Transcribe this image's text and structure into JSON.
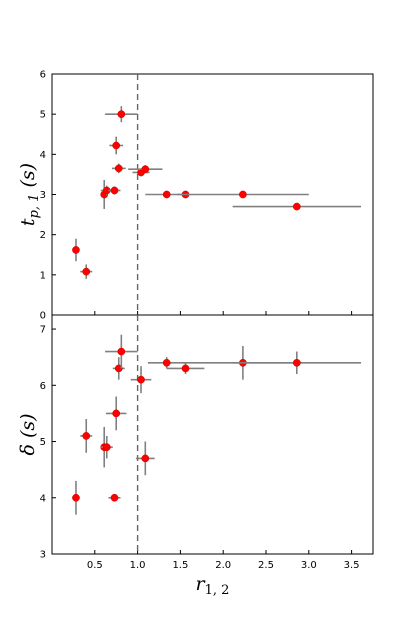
{
  "chart_data": {
    "type": "scatter",
    "xlabel": "r",
    "xlabel_sub": "1, 2",
    "xlim": [
      0,
      3.75
    ],
    "xticks": [
      "0.5",
      "1.0",
      "1.5",
      "2.0",
      "2.5",
      "3.0",
      "3.5"
    ],
    "xtick_values": [
      0.5,
      1.0,
      1.5,
      2.0,
      2.5,
      3.0,
      3.5
    ],
    "reference_x": 1.0,
    "panels": [
      {
        "ylabel": "t",
        "ylabel_sub": "p, 1",
        "ylabel_unit": " (s)",
        "ylim": [
          0,
          6
        ],
        "yticks": [
          "0",
          "1",
          "2",
          "3",
          "4",
          "5",
          "6"
        ],
        "ytick_values": [
          0,
          1,
          2,
          3,
          4,
          5,
          6
        ],
        "points": [
          {
            "x": 0.28,
            "y": 1.62,
            "xerr": 0.0,
            "yerr": 0.28
          },
          {
            "x": 0.4,
            "y": 1.08,
            "xerr": 0.07,
            "yerr": 0.18
          },
          {
            "x": 0.61,
            "y": 3.0,
            "xerr": 0.0,
            "yerr": 0.36
          },
          {
            "x": 0.64,
            "y": 3.1,
            "xerr": 0.07,
            "yerr": 0.12
          },
          {
            "x": 0.73,
            "y": 3.1,
            "xerr": 0.07,
            "yerr": 0.1
          },
          {
            "x": 0.75,
            "y": 4.22,
            "xerr": 0.08,
            "yerr": 0.22
          },
          {
            "x": 0.78,
            "y": 3.65,
            "xerr": 0.08,
            "yerr": 0.12
          },
          {
            "x": 0.81,
            "y": 5.0,
            "xerr": 0.19,
            "yerr": 0.2
          },
          {
            "x": 1.04,
            "y": 3.55,
            "xerr": 0.1,
            "yerr": 0.1
          },
          {
            "x": 1.09,
            "y": 3.63,
            "xerr": 0.2,
            "yerr": 0.1
          },
          {
            "x": 1.34,
            "y": 3.0,
            "xerr": 0.25,
            "yerr": 0.0
          },
          {
            "x": 1.56,
            "y": 3.0,
            "xerr": 0.0,
            "yerr": 0.0
          },
          {
            "x": 2.23,
            "y": 3.0,
            "xerr": 0.77,
            "yerr": 0.0
          },
          {
            "x": 2.86,
            "y": 2.7,
            "xerr": 0.75,
            "yerr": 0.0
          }
        ]
      },
      {
        "ylabel": "δ",
        "ylabel_sub": "",
        "ylabel_unit": " (s)",
        "ylim": [
          3,
          7.25
        ],
        "yticks": [
          "3",
          "4",
          "5",
          "6",
          "7"
        ],
        "ytick_values": [
          3,
          4,
          5,
          6,
          7
        ],
        "points": [
          {
            "x": 0.28,
            "y": 4.0,
            "xerr": 0.0,
            "yerr": 0.3
          },
          {
            "x": 0.4,
            "y": 5.1,
            "xerr": 0.07,
            "yerr": 0.3
          },
          {
            "x": 0.61,
            "y": 4.9,
            "xerr": 0.04,
            "yerr": 0.36
          },
          {
            "x": 0.64,
            "y": 4.9,
            "xerr": 0.07,
            "yerr": 0.2
          },
          {
            "x": 0.73,
            "y": 4.0,
            "xerr": 0.07,
            "yerr": 0.0
          },
          {
            "x": 0.75,
            "y": 5.5,
            "xerr": 0.12,
            "yerr": 0.3
          },
          {
            "x": 0.78,
            "y": 6.3,
            "xerr": 0.07,
            "yerr": 0.2
          },
          {
            "x": 0.81,
            "y": 6.6,
            "xerr": 0.19,
            "yerr": 0.3
          },
          {
            "x": 1.04,
            "y": 6.1,
            "xerr": 0.12,
            "yerr": 0.24
          },
          {
            "x": 1.09,
            "y": 4.7,
            "xerr": 0.11,
            "yerr": 0.3
          },
          {
            "x": 1.34,
            "y": 6.4,
            "xerr": 0.22,
            "yerr": 0.1
          },
          {
            "x": 1.56,
            "y": 6.3,
            "xerr": 0.22,
            "yerr": 0.1
          },
          {
            "x": 2.23,
            "y": 6.4,
            "xerr": 0.7,
            "yerr": 0.3
          },
          {
            "x": 2.86,
            "y": 6.4,
            "xerr": 0.75,
            "yerr": 0.2
          }
        ]
      }
    ]
  }
}
